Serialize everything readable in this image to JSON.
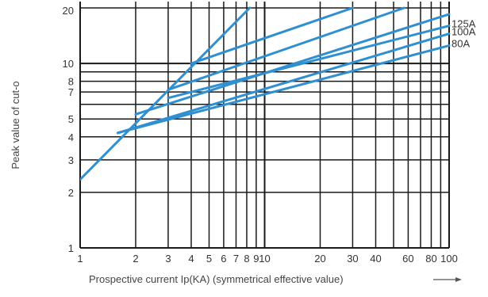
{
  "chart_data": {
    "type": "line",
    "xlabel": "Prospective current Ip(KA) (symmetrical effective value)",
    "ylabel": "Peak value of cut-o",
    "x_scale": "log",
    "y_scale": "log",
    "xlim": [
      1,
      100
    ],
    "ylim": [
      1,
      20
    ],
    "x_ticks": [
      {
        "value": 1,
        "label": "1"
      },
      {
        "value": 2,
        "label": "2"
      },
      {
        "value": 3,
        "label": "3"
      },
      {
        "value": 4,
        "label": "4"
      },
      {
        "value": 5,
        "label": "5"
      },
      {
        "value": 6,
        "label": "6"
      },
      {
        "value": 7,
        "label": "7"
      },
      {
        "value": 8,
        "label": "8"
      },
      {
        "value": 9,
        "label": "9"
      },
      {
        "value": 10,
        "label": "10"
      },
      {
        "value": 20,
        "label": "20"
      },
      {
        "value": 30,
        "label": "30"
      },
      {
        "value": 40,
        "label": "40"
      },
      {
        "value": 60,
        "label": "60"
      },
      {
        "value": 80,
        "label": "80"
      },
      {
        "value": 100,
        "label": "100"
      }
    ],
    "x_gridlines": [
      1,
      2,
      3,
      4,
      5,
      6,
      7,
      8,
      9,
      10,
      20,
      30,
      40,
      50,
      60,
      70,
      80,
      90,
      100
    ],
    "y_ticks": [
      {
        "value": 1,
        "label": "1"
      },
      {
        "value": 2,
        "label": "2"
      },
      {
        "value": 3,
        "label": "3"
      },
      {
        "value": 4,
        "label": "4"
      },
      {
        "value": 5,
        "label": "5"
      },
      {
        "value": 7,
        "label": "7"
      },
      {
        "value": 8,
        "label": "8"
      },
      {
        "value": 10,
        "label": "10"
      },
      {
        "value": 20,
        "label": "20"
      }
    ],
    "y_gridlines": [
      1,
      2,
      3,
      4,
      5,
      6,
      7,
      8,
      9,
      10,
      20
    ],
    "grid": true,
    "line_color": "#2f8fd1",
    "series": [
      {
        "name": "",
        "points": [
          [
            1,
            2.35
          ],
          [
            8.3,
            20
          ]
        ]
      },
      {
        "name": "",
        "points": [
          [
            4,
            10
          ],
          [
            30,
            20
          ]
        ]
      },
      {
        "name": "",
        "points": [
          [
            3,
            7.2
          ],
          [
            57,
            20
          ]
        ]
      },
      {
        "name": "",
        "points": [
          [
            2,
            5.3
          ],
          [
            100,
            18.5
          ]
        ]
      },
      {
        "name": "125A",
        "points": [
          [
            3,
            6.5
          ],
          [
            100,
            16
          ]
        ]
      },
      {
        "name": "100A",
        "points": [
          [
            1.6,
            4.2
          ],
          [
            100,
            14.5
          ]
        ]
      },
      {
        "name": "80A",
        "points": [
          [
            1.6,
            4.2
          ],
          [
            100,
            12.5
          ]
        ]
      }
    ]
  }
}
